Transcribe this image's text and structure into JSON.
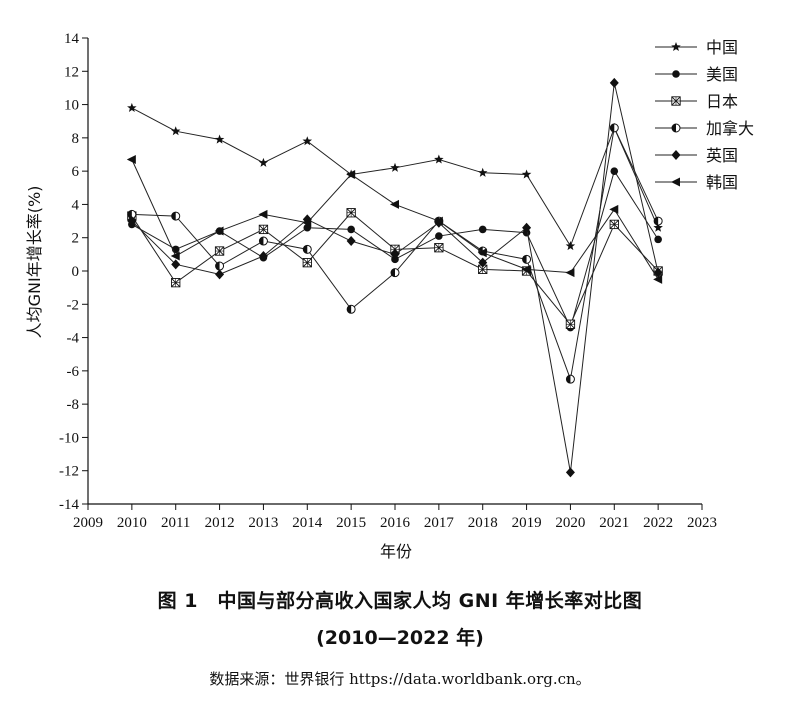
{
  "chart_data": {
    "type": "line",
    "ylabel": "人均GNI年增长率(%)",
    "xlabel": "年份",
    "xlim": [
      2009,
      2023
    ],
    "ylim": [
      -14,
      14
    ],
    "x_ticks": [
      "2009",
      "2010",
      "2011",
      "2012",
      "2013",
      "2014",
      "2015",
      "2016",
      "2017",
      "2018",
      "2019",
      "2020",
      "2021",
      "2022",
      "2023"
    ],
    "y_ticks": [
      "14",
      "12",
      "10",
      "8",
      "6",
      "4",
      "2",
      "0",
      "-2",
      "-4",
      "-6",
      "-8",
      "-10",
      "-12",
      "-14"
    ],
    "x": [
      2010,
      2011,
      2012,
      2013,
      2014,
      2015,
      2016,
      2017,
      2018,
      2019,
      2020,
      2021,
      2022
    ],
    "grid": false,
    "legend_position": "top-right",
    "series": [
      {
        "name": "中国",
        "marker": "star",
        "values": [
          9.8,
          8.4,
          7.9,
          6.5,
          7.8,
          5.8,
          6.2,
          6.7,
          5.9,
          5.8,
          1.5,
          8.6,
          2.6
        ]
      },
      {
        "name": "美国",
        "marker": "circle-filled",
        "values": [
          2.8,
          1.3,
          2.4,
          0.8,
          2.6,
          2.5,
          0.7,
          2.1,
          2.5,
          2.3,
          -3.4,
          6.0,
          1.9
        ]
      },
      {
        "name": "日本",
        "marker": "square-x",
        "values": [
          3.3,
          -0.7,
          1.2,
          2.5,
          0.5,
          3.5,
          1.3,
          1.4,
          0.1,
          0.0,
          -3.2,
          2.8,
          0.0
        ]
      },
      {
        "name": "加拿大",
        "marker": "circle-half",
        "values": [
          3.4,
          3.3,
          0.3,
          1.8,
          1.3,
          -2.3,
          -0.1,
          3.0,
          1.2,
          0.7,
          -6.5,
          8.6,
          3.0
        ]
      },
      {
        "name": "英国",
        "marker": "diamond",
        "values": [
          3.0,
          0.4,
          -0.2,
          0.9,
          3.1,
          1.8,
          1.0,
          2.9,
          0.5,
          2.6,
          -12.1,
          11.3,
          -0.1
        ]
      },
      {
        "name": "韩国",
        "marker": "triangle-left",
        "values": [
          6.7,
          0.9,
          2.4,
          3.4,
          2.9,
          5.8,
          4.0,
          3.0,
          1.1,
          0.1,
          -0.1,
          3.7,
          -0.5
        ]
      }
    ]
  },
  "caption": {
    "title": "图 1　中国与部分高收入国家人均 GNI 年增长率对比图",
    "range": "(2010—2022 年)",
    "source": "数据来源：世界银行 https://data.worldbank.org.cn。"
  }
}
